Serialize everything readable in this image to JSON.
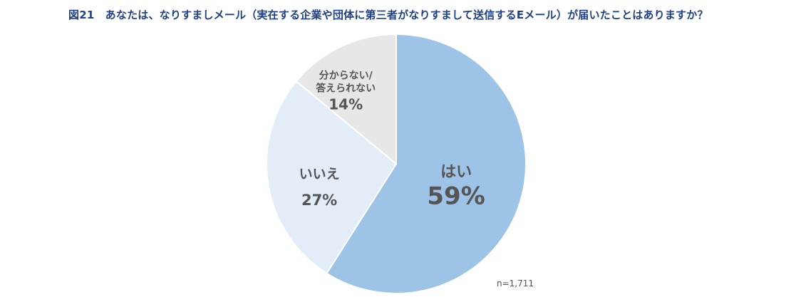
{
  "chart_data": {
    "type": "pie",
    "title": "図21　あなたは、なりすましメール（実在する企業や団体に第三者がなりすまして送信するEメール）が届いたことはありますか？",
    "note": "n=1,711",
    "slices": [
      {
        "label": "はい",
        "label_lines": [
          "はい"
        ],
        "value": 59,
        "value_label": "59%",
        "color": "#9dc3e6"
      },
      {
        "label": "いいえ",
        "label_lines": [
          "いいえ"
        ],
        "value": 27,
        "value_label": "27%",
        "color": "#e3edf8"
      },
      {
        "label": "分からない/答えられない",
        "label_lines": [
          "分からない/",
          "答えられない"
        ],
        "value": 14,
        "value_label": "14%",
        "color": "#e7e7e7"
      }
    ]
  }
}
